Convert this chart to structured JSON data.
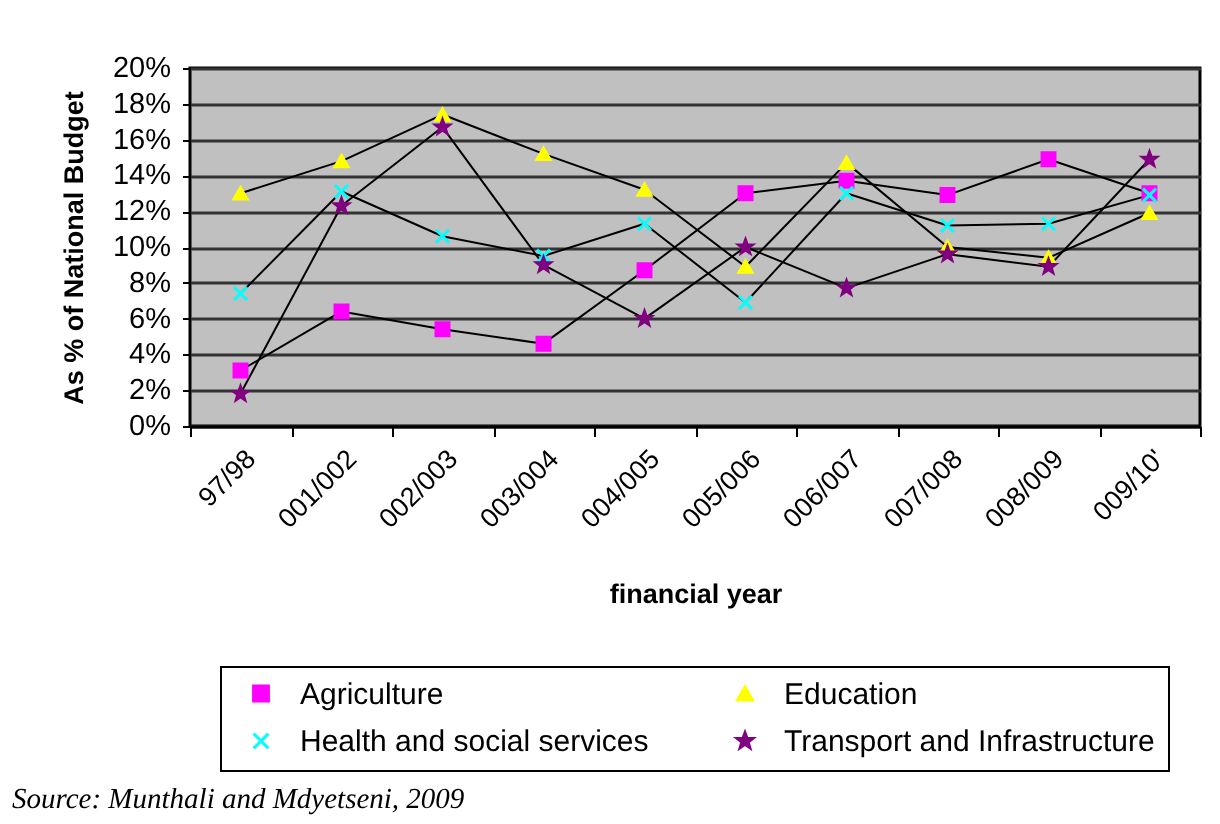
{
  "chart_data": {
    "type": "line",
    "xlabel": "financial year",
    "ylabel": "As % of National Budget",
    "annotations": [
      "Source: Munthali and Mdyetseni, 2009"
    ],
    "categories": [
      "97/98",
      "001/002",
      "002/003",
      "003/004",
      "004/005",
      "005/006",
      "006/007",
      "007/008",
      "008/009",
      "009/10'"
    ],
    "series": [
      {
        "name": "Agriculture",
        "color": "#ff00ff",
        "marker": "square",
        "values": [
          3.1,
          6.4,
          5.4,
          4.6,
          8.7,
          13.0,
          13.7,
          12.9,
          14.9,
          13.0
        ]
      },
      {
        "name": "Education",
        "color": "#ffff00",
        "marker": "triangle",
        "values": [
          13.0,
          14.8,
          17.4,
          15.2,
          13.2,
          8.9,
          14.7,
          10.0,
          9.4,
          11.9
        ]
      },
      {
        "name": "Health and social services",
        "color": "#00ffff",
        "marker": "cross",
        "values": [
          7.4,
          13.1,
          10.6,
          9.5,
          11.3,
          6.9,
          13.0,
          11.2,
          11.3,
          12.9
        ]
      },
      {
        "name": "Transport and Infrastructure",
        "color": "#800080",
        "marker": "star",
        "values": [
          1.8,
          12.3,
          16.7,
          9.0,
          6.0,
          10.0,
          7.7,
          9.6,
          8.9,
          14.9
        ]
      }
    ],
    "ylim": [
      0,
      20
    ],
    "yticks": [
      {
        "value": 0,
        "label": "0%"
      },
      {
        "value": 2,
        "label": "2%"
      },
      {
        "value": 4,
        "label": "4%"
      },
      {
        "value": 6,
        "label": "6%"
      },
      {
        "value": 8,
        "label": "8%"
      },
      {
        "value": 10,
        "label": "10%"
      },
      {
        "value": 12,
        "label": "12%"
      },
      {
        "value": 14,
        "label": "14%"
      },
      {
        "value": 16,
        "label": "16%"
      },
      {
        "value": 18,
        "label": "18%"
      },
      {
        "value": 20,
        "label": "20%"
      }
    ],
    "grid": "y",
    "legend": "bottom"
  }
}
